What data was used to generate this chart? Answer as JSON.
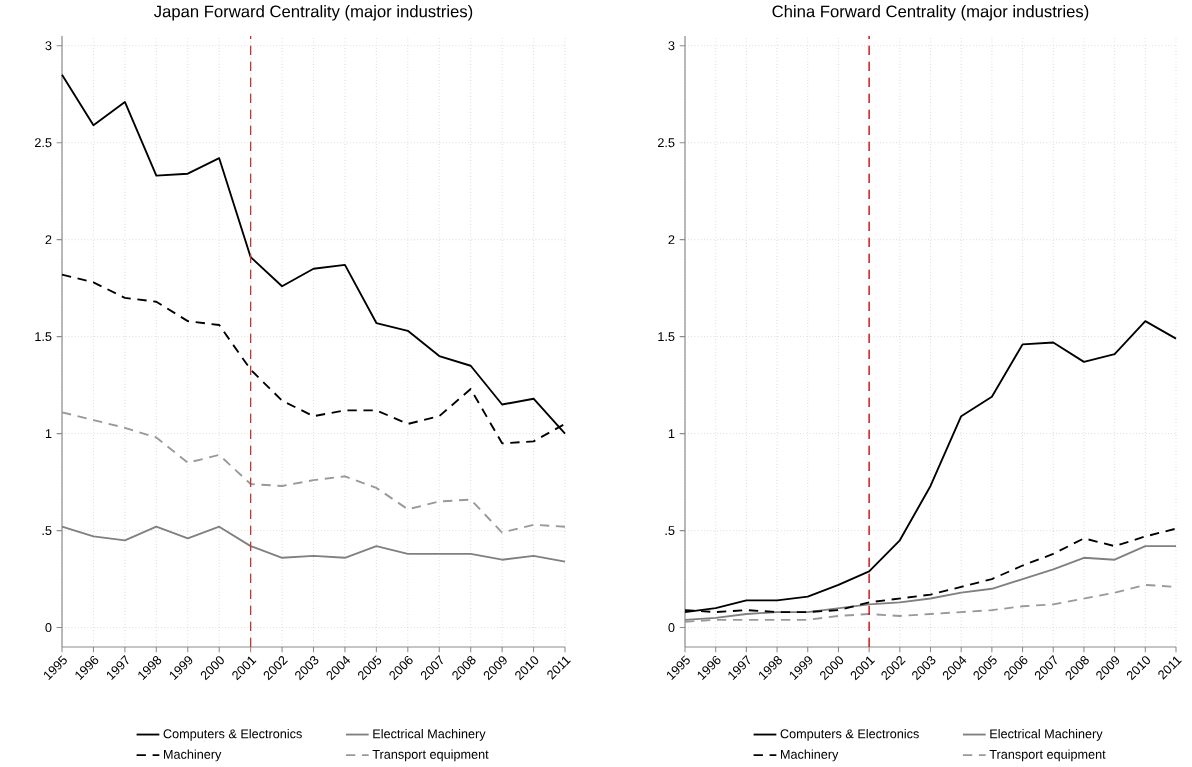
{
  "chart_data": [
    {
      "type": "line",
      "title": "Japan Forward Centrality (major industries)",
      "x": [
        1995,
        1996,
        1997,
        1998,
        1999,
        2000,
        2001,
        2002,
        2003,
        2004,
        2005,
        2006,
        2007,
        2008,
        2009,
        2010,
        2011
      ],
      "xlim": [
        1995,
        2011
      ],
      "xticks": [
        1995,
        1996,
        1997,
        1998,
        1999,
        2000,
        2001,
        2002,
        2003,
        2004,
        2005,
        2006,
        2007,
        2008,
        2009,
        2010,
        2011
      ],
      "ylim": [
        -0.1,
        3.05
      ],
      "yticks": [
        0,
        {
          "value": 0.5,
          "label": ".5"
        },
        1,
        1.5,
        2,
        2.5,
        3
      ],
      "grid": true,
      "legend": "bottom",
      "ref_lines": [
        {
          "axis": "x",
          "value": 2001,
          "color": "#c0392b",
          "line_style": "dashed"
        }
      ],
      "series": [
        {
          "name": "Computers & Electronics",
          "color": "#000000",
          "line_style": "solid",
          "values": [
            2.85,
            2.59,
            2.71,
            2.33,
            2.34,
            2.42,
            1.91,
            1.76,
            1.85,
            1.87,
            1.57,
            1.53,
            1.4,
            1.35,
            1.15,
            1.18,
            1.0
          ]
        },
        {
          "name": "Electrical Machinery",
          "color": "#808080",
          "line_style": "solid",
          "values": [
            0.52,
            0.47,
            0.45,
            0.52,
            0.46,
            0.52,
            0.42,
            0.36,
            0.37,
            0.36,
            0.42,
            0.38,
            0.38,
            0.38,
            0.35,
            0.37,
            0.34
          ]
        },
        {
          "name": "Machinery",
          "color": "#000000",
          "line_style": "dashed",
          "values": [
            1.82,
            1.78,
            1.7,
            1.68,
            1.58,
            1.56,
            1.33,
            1.17,
            1.09,
            1.12,
            1.12,
            1.05,
            1.09,
            1.23,
            0.95,
            0.96,
            1.05
          ]
        },
        {
          "name": "Transport equipment",
          "color": "#999999",
          "line_style": "dashed",
          "values": [
            1.11,
            1.07,
            1.03,
            0.98,
            0.85,
            0.89,
            0.74,
            0.73,
            0.76,
            0.78,
            0.72,
            0.61,
            0.65,
            0.66,
            0.49,
            0.53,
            0.52
          ]
        }
      ]
    },
    {
      "type": "line",
      "title": "China Forward Centrality (major industries)",
      "x": [
        1995,
        1996,
        1997,
        1998,
        1999,
        2000,
        2001,
        2002,
        2003,
        2004,
        2005,
        2006,
        2007,
        2008,
        2009,
        2010,
        2011
      ],
      "xlim": [
        1995,
        2011
      ],
      "xticks": [
        1995,
        1996,
        1997,
        1998,
        1999,
        2000,
        2001,
        2002,
        2003,
        2004,
        2005,
        2006,
        2007,
        2008,
        2009,
        2010,
        2011
      ],
      "ylim": [
        -0.1,
        3.05
      ],
      "yticks": [
        0,
        {
          "value": 0.5,
          "label": ".5"
        },
        1,
        1.5,
        2,
        2.5,
        3
      ],
      "grid": true,
      "legend": "bottom",
      "ref_lines": [
        {
          "axis": "x",
          "value": 2001,
          "color": "#cc0000",
          "line_style": "dashed"
        }
      ],
      "series": [
        {
          "name": "Computers & Electronics",
          "color": "#000000",
          "line_style": "solid",
          "values": [
            0.08,
            0.1,
            0.14,
            0.14,
            0.16,
            0.22,
            0.29,
            0.45,
            0.73,
            1.09,
            1.19,
            1.46,
            1.47,
            1.37,
            1.41,
            1.58,
            1.49
          ]
        },
        {
          "name": "Electrical Machinery",
          "color": "#808080",
          "line_style": "solid",
          "values": [
            0.04,
            0.05,
            0.07,
            0.08,
            0.08,
            0.1,
            0.12,
            0.13,
            0.15,
            0.18,
            0.2,
            0.25,
            0.3,
            0.36,
            0.35,
            0.42,
            0.42
          ]
        },
        {
          "name": "Machinery",
          "color": "#000000",
          "line_style": "dashed",
          "values": [
            0.09,
            0.08,
            0.09,
            0.08,
            0.08,
            0.09,
            0.13,
            0.15,
            0.17,
            0.21,
            0.25,
            0.32,
            0.38,
            0.46,
            0.42,
            0.47,
            0.51
          ]
        },
        {
          "name": "Transport equipment",
          "color": "#999999",
          "line_style": "dashed",
          "values": [
            0.03,
            0.04,
            0.04,
            0.04,
            0.04,
            0.06,
            0.07,
            0.06,
            0.07,
            0.08,
            0.09,
            0.11,
            0.12,
            0.15,
            0.18,
            0.22,
            0.21
          ]
        }
      ]
    }
  ]
}
